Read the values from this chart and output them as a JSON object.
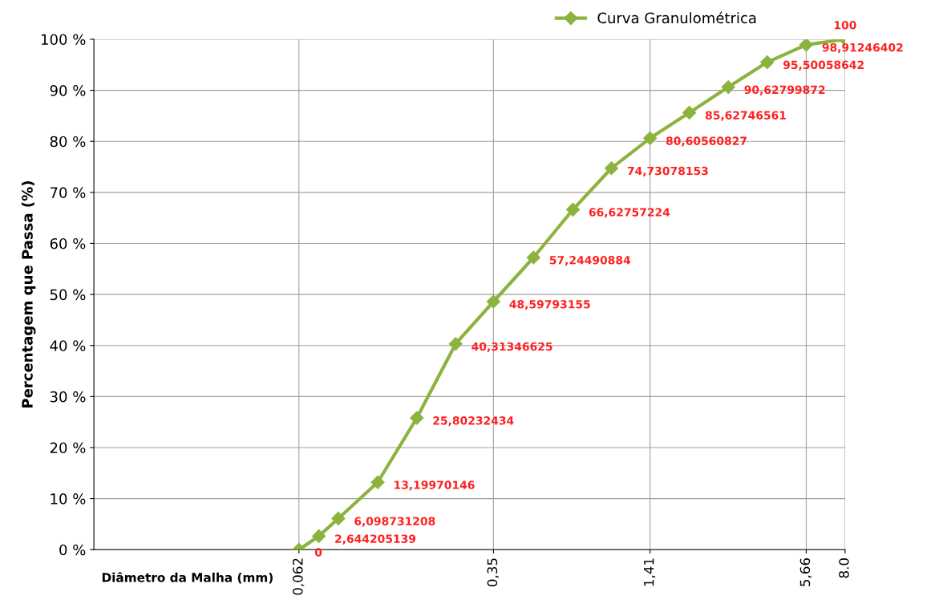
{
  "chart_data": {
    "type": "line",
    "xlabel": "Diâmetro da Malha (mm)",
    "ylabel": "Percentagem que Passa (%)",
    "x": [
      0.062,
      0.074,
      0.088,
      0.125,
      0.177,
      0.25,
      0.35,
      0.5,
      0.71,
      1.0,
      1.41,
      2.0,
      2.83,
      4.0,
      5.66,
      8.0
    ],
    "series": [
      {
        "name": "Curva Granulométrica",
        "color": "#8db33f",
        "values": [
          0,
          2.644205139,
          6.098731208,
          13.19970146,
          25.80232434,
          40.31346625,
          48.59793155,
          57.24490884,
          66.62757224,
          74.73078153,
          80.60560827,
          85.62746561,
          90.62799872,
          95.50058642,
          98.91246402,
          100
        ],
        "value_labels": [
          "0",
          "2,644205139",
          "6,098731208",
          "13,19970146",
          "25,80232434",
          "40,31346625",
          "48,59793155",
          "57,24490884",
          "66,62757224",
          "74,73078153",
          "80,60560827",
          "85,62746561",
          "90,62799872",
          "95,50058642",
          "98,91246402",
          "100"
        ]
      }
    ],
    "log": "x",
    "xlim": [
      0.01,
      8.0
    ],
    "xticks": [
      {
        "value": 0.062,
        "label": "0,062"
      },
      {
        "value": 0.35,
        "label": "0,35"
      },
      {
        "value": 1.41,
        "label": "1,41"
      },
      {
        "value": 5.66,
        "label": "5,66"
      },
      {
        "value": 8.0,
        "label": "8.0"
      }
    ],
    "ylim": [
      0,
      100
    ],
    "yticks": [
      {
        "value": 0,
        "label": "0 %"
      },
      {
        "value": 10,
        "label": "10 %"
      },
      {
        "value": 20,
        "label": "20 %"
      },
      {
        "value": 30,
        "label": "30 %"
      },
      {
        "value": 40,
        "label": "40 %"
      },
      {
        "value": 50,
        "label": "50 %"
      },
      {
        "value": 60,
        "label": "60 %"
      },
      {
        "value": 70,
        "label": "70 %"
      },
      {
        "value": 80,
        "label": "80 %"
      },
      {
        "value": 90,
        "label": "90 %"
      },
      {
        "value": 100,
        "label": "100 %"
      }
    ],
    "grid": true,
    "legend": "top right",
    "marker": "diamond",
    "line_style": "solid"
  }
}
